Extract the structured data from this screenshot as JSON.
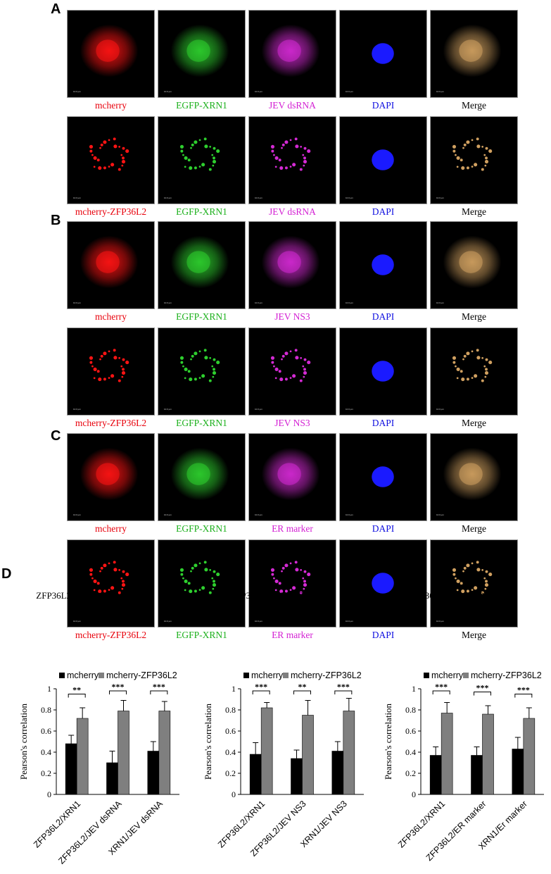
{
  "panels": {
    "A": "A",
    "B": "B",
    "C": "C",
    "D": "D"
  },
  "scale_text": "10.0 µm",
  "rows": [
    {
      "labels": [
        "mcherry",
        "EGFP-XRN1",
        "JEV dsRNA",
        "DAPI",
        "Merge"
      ]
    },
    {
      "labels": [
        "mcherry-ZFP36L2",
        "EGFP-XRN1",
        "JEV dsRNA",
        "DAPI",
        "Merge"
      ]
    },
    {
      "labels": [
        "mcherry",
        "EGFP-XRN1",
        "JEV NS3",
        "DAPI",
        "Merge"
      ]
    },
    {
      "labels": [
        "mcherry-ZFP36L2",
        "EGFP-XRN1",
        "JEV NS3",
        "DAPI",
        "Merge"
      ]
    },
    {
      "labels": [
        "mcherry",
        "EGFP-XRN1",
        "ER marker",
        "DAPI",
        "Merge"
      ]
    },
    {
      "labels": [
        "mcherry-ZFP36L2",
        "EGFP-XRN1",
        "ER marker",
        "DAPI",
        "Merge"
      ]
    }
  ],
  "label_colors": [
    "#e8000b",
    "#1bb01b",
    "#d31fd3",
    "#1010e0",
    "#000000"
  ],
  "chart_data": [
    {
      "type": "bar",
      "title": "ZFP36L2/XRN1/JEV dsRNA",
      "ylabel": "Pearson's correlation",
      "ylim": [
        0,
        1
      ],
      "yticks": [
        "0",
        "0.2",
        "0.4",
        "0.6",
        "0.8",
        "1"
      ],
      "categories": [
        "ZFP36L2/XRN1",
        "ZFP36L2/JEV dsRNA",
        "XRN1/JEV dsRNA"
      ],
      "series": [
        {
          "name": "mcherry",
          "color": "#000000",
          "values": [
            0.48,
            0.3,
            0.41
          ],
          "errors": [
            0.08,
            0.11,
            0.09
          ]
        },
        {
          "name": "mcherry-ZFP36L2",
          "color": "#7f7f7f",
          "values": [
            0.72,
            0.79,
            0.79
          ],
          "errors": [
            0.1,
            0.1,
            0.09
          ]
        }
      ],
      "significance": [
        "**",
        "***",
        "***"
      ]
    },
    {
      "type": "bar",
      "title": "ZFP36L2/XRN1/JEV NS3",
      "ylabel": "Pearson's correlation",
      "ylim": [
        0,
        1
      ],
      "yticks": [
        "0",
        "0.2",
        "0.4",
        "0.6",
        "0.8",
        "1"
      ],
      "categories": [
        "ZFP36L2/XRN1",
        "ZFP36L2/JEV NS3",
        "XRN1/JEV NS3"
      ],
      "series": [
        {
          "name": "mcherry",
          "color": "#000000",
          "values": [
            0.38,
            0.34,
            0.41
          ],
          "errors": [
            0.11,
            0.08,
            0.09
          ]
        },
        {
          "name": "mcherry-ZFP36L2",
          "color": "#7f7f7f",
          "values": [
            0.82,
            0.75,
            0.79
          ],
          "errors": [
            0.05,
            0.14,
            0.12
          ]
        }
      ],
      "significance": [
        "***",
        "**",
        "***"
      ]
    },
    {
      "type": "bar",
      "title": "ZFP36L2/XRN1/ER maker",
      "ylabel": "Pearson's correlation",
      "ylim": [
        0,
        1
      ],
      "yticks": [
        "0",
        "0.2",
        "0.4",
        "0.6",
        "0.8",
        "1"
      ],
      "categories": [
        "ZFP36L2/XRN1",
        "ZFP36L2/ER marker",
        "XRN1/Er marker"
      ],
      "series": [
        {
          "name": "mcherry",
          "color": "#000000",
          "values": [
            0.37,
            0.37,
            0.43
          ],
          "errors": [
            0.08,
            0.08,
            0.11
          ]
        },
        {
          "name": "mcherry-ZFP36L2",
          "color": "#7f7f7f",
          "values": [
            0.77,
            0.76,
            0.72
          ],
          "errors": [
            0.1,
            0.08,
            0.1
          ]
        }
      ],
      "significance": [
        "***",
        "***",
        "***"
      ]
    }
  ]
}
